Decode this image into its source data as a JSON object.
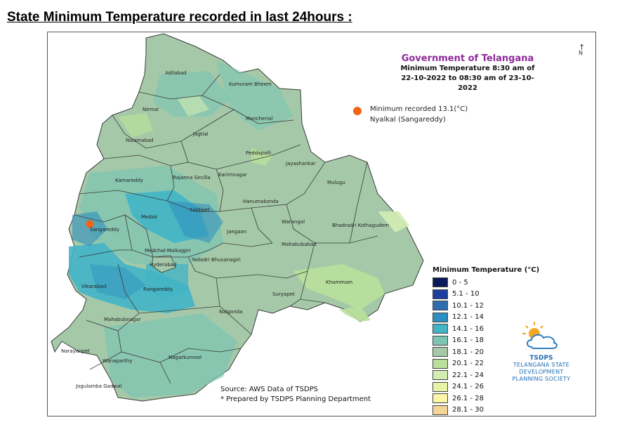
{
  "heading": "State Minimum Temperature recorded in last 24hours :",
  "map": {
    "title": "Government of Telangana",
    "subtitle_line1": "Minimum Temperature 8:30 am of",
    "subtitle_line2": "22-10-2022 to 08:30 am of 23-10-2022",
    "north_arrow": "N",
    "minimum_note_line1": "Minimum recorded 13.1(°C)",
    "minimum_note_line2": "Nyalkal (Sangareddy)",
    "minimum_value_c": 13.1,
    "marker_color": "#f06414",
    "districts": [
      {
        "name": "Adilabad"
      },
      {
        "name": "Kumuram Bheem"
      },
      {
        "name": "Nirmal"
      },
      {
        "name": "Mancherial"
      },
      {
        "name": "Nizamabad"
      },
      {
        "name": "Jagtial"
      },
      {
        "name": "Peddapalli"
      },
      {
        "name": "Jayashankar"
      },
      {
        "name": "Kamareddy"
      },
      {
        "name": "Rajanna Sircilla"
      },
      {
        "name": "Karimnagar"
      },
      {
        "name": "Mulugu"
      },
      {
        "name": "Hanumakonda"
      },
      {
        "name": "Siddipet"
      },
      {
        "name": "Medak"
      },
      {
        "name": "Sangareddy"
      },
      {
        "name": "Jangaon"
      },
      {
        "name": "Warangal"
      },
      {
        "name": "Bhadradri Kothagudem"
      },
      {
        "name": "Mahabubabad"
      },
      {
        "name": "Medchal-Malkajgiri"
      },
      {
        "name": "Yadadri Bhuvanagiri"
      },
      {
        "name": "Hyderabad"
      },
      {
        "name": "Vikarabad"
      },
      {
        "name": "Rangareddy"
      },
      {
        "name": "Suryapet"
      },
      {
        "name": "Khammam"
      },
      {
        "name": "Nalgonda"
      },
      {
        "name": "Mahabubnagar"
      },
      {
        "name": "Narayanpet"
      },
      {
        "name": "Wanaparthy"
      },
      {
        "name": "Nagarkurnool"
      },
      {
        "name": "Jogulamba Gadwal"
      }
    ],
    "legend": {
      "title": "Minimum Temperature (°C)",
      "items": [
        {
          "label": "0 - 5",
          "color": "#0a1a5a"
        },
        {
          "label": "5.1 - 10",
          "color": "#1f3fa0"
        },
        {
          "label": "10.1 - 12",
          "color": "#2f6cb0"
        },
        {
          "label": "12.1 - 14",
          "color": "#2e8ec0"
        },
        {
          "label": "14.1 - 16",
          "color": "#43b4c6"
        },
        {
          "label": "16.1 - 18",
          "color": "#7cc4b4"
        },
        {
          "label": "18.1 - 20",
          "color": "#a5c9a8"
        },
        {
          "label": "20.1 - 22",
          "color": "#b9e09a"
        },
        {
          "label": "22.1 - 24",
          "color": "#d3ecb2"
        },
        {
          "label": "24.1 - 26",
          "color": "#e9f3a6"
        },
        {
          "label": "26.1 - 28",
          "color": "#fbf6a6"
        },
        {
          "label": "28.1 - 30",
          "color": "#f3d596"
        }
      ]
    },
    "source_line1": "Source: AWS Data of TSDPS",
    "source_line2": "* Prepared by TSDPS Planning Department",
    "logo": {
      "name": "TSDPS",
      "line1": "TELANGANA STATE",
      "line2": "DEVELOPMENT",
      "line3": "PLANNING SOCIETY"
    }
  }
}
